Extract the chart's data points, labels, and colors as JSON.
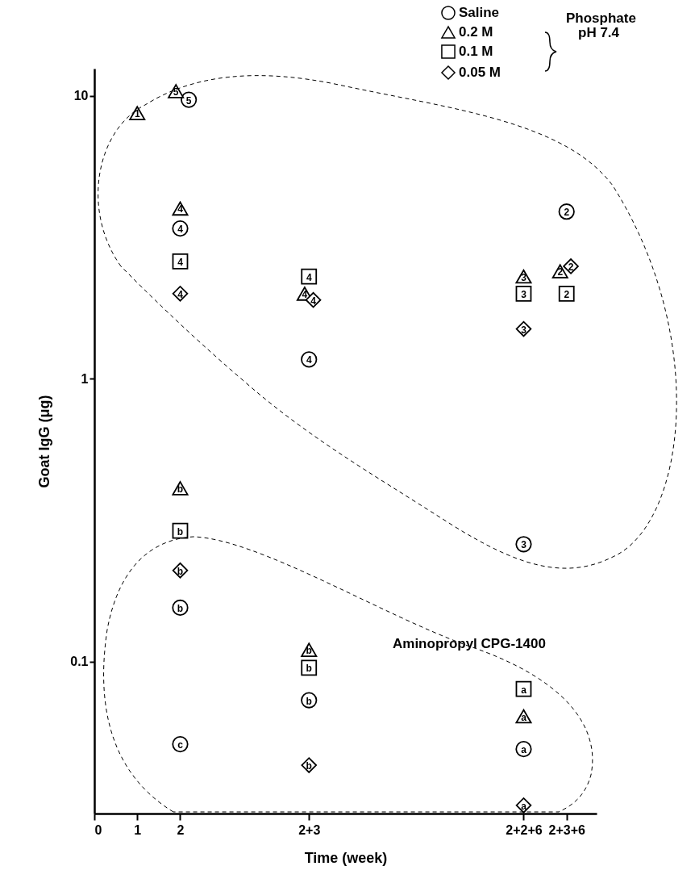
{
  "chart_data": {
    "type": "scatter",
    "xlabel": "Time (week)",
    "ylabel": "Goat IgG (μg)",
    "xlim": [
      0,
      11.7
    ],
    "xticks": [
      0,
      1,
      2,
      {
        "value": 5,
        "label": "2+3"
      },
      {
        "value": 10,
        "label": "2+2+6"
      },
      {
        "value": 11,
        "label": "2+3+6"
      }
    ],
    "ylim": [
      0.029,
      12.5
    ],
    "yticks": [
      0.1,
      1,
      10
    ],
    "log": "y",
    "grid": false,
    "legend": "top right",
    "annotations": [
      "Phosphate",
      "pH 7.4",
      "Aminopropyl CPG-1400",
      {
        "text": "5",
        "x": 2.2,
        "y": 9.7
      },
      {
        "text": "4",
        "x": 2,
        "y": 3.4
      },
      {
        "text": "4",
        "x": 5,
        "y": 1.17
      },
      {
        "text": "2",
        "x": 11,
        "y": 3.9
      },
      {
        "text": "3",
        "x": 10,
        "y": 0.26
      },
      {
        "text": "b",
        "x": 2,
        "y": 0.155
      },
      {
        "text": "c",
        "x": 2,
        "y": 0.051
      },
      {
        "text": "b",
        "x": 5,
        "y": 0.073
      },
      {
        "text": "a",
        "x": 10,
        "y": 0.049
      },
      {
        "text": "1",
        "x": 1,
        "y": 8.7
      },
      {
        "text": "5",
        "x": 1.9,
        "y": 10.4
      },
      {
        "text": "4",
        "x": 2,
        "y": 4.0
      },
      {
        "text": "4",
        "x": 4.9,
        "y": 2.0
      },
      {
        "text": "3",
        "x": 10,
        "y": 2.3
      },
      {
        "text": "2",
        "x": 10.85,
        "y": 2.4
      },
      {
        "text": "b",
        "x": 2,
        "y": 0.41
      },
      {
        "text": "b",
        "x": 5,
        "y": 0.11
      },
      {
        "text": "a",
        "x": 10,
        "y": 0.064
      },
      {
        "text": "4",
        "x": 2,
        "y": 2.6
      },
      {
        "text": "4",
        "x": 5,
        "y": 2.3
      },
      {
        "text": "3",
        "x": 10,
        "y": 2.0
      },
      {
        "text": "2",
        "x": 11,
        "y": 2.0
      },
      {
        "text": "b",
        "x": 2,
        "y": 0.29
      },
      {
        "text": "b",
        "x": 5,
        "y": 0.095
      },
      {
        "text": "a",
        "x": 10,
        "y": 0.08
      },
      {
        "text": "4",
        "x": 2,
        "y": 2.0
      },
      {
        "text": "4",
        "x": 5.1,
        "y": 1.9
      },
      {
        "text": "3",
        "x": 10,
        "y": 1.5
      },
      {
        "text": "2",
        "x": 11.1,
        "y": 2.5
      },
      {
        "text": "b",
        "x": 2,
        "y": 0.21
      },
      {
        "text": "b",
        "x": 5,
        "y": 0.043
      },
      {
        "text": "a",
        "x": 10,
        "y": 0.031
      }
    ],
    "series": [
      {
        "name": "Saline",
        "color": "#000000",
        "marker": "circle",
        "x": [
          2.2,
          2,
          5,
          11,
          10,
          2,
          2,
          5,
          10
        ],
        "values": [
          9.7,
          3.4,
          1.17,
          3.9,
          0.26,
          0.155,
          0.051,
          0.073,
          0.049
        ]
      },
      {
        "name": "0.2 M",
        "color": "#000000",
        "marker": "triangle",
        "x": [
          1,
          1.9,
          2,
          4.9,
          10,
          10.85,
          2,
          5,
          10
        ],
        "values": [
          8.7,
          10.4,
          4.0,
          2.0,
          2.3,
          2.4,
          0.41,
          0.11,
          0.064
        ]
      },
      {
        "name": "0.1 M",
        "color": "#000000",
        "marker": "square",
        "x": [
          2,
          5,
          10,
          11,
          2,
          5,
          10
        ],
        "values": [
          2.6,
          2.3,
          2.0,
          2.0,
          0.29,
          0.095,
          0.08
        ]
      },
      {
        "name": "0.05 M",
        "color": "#000000",
        "marker": "diamond",
        "x": [
          2,
          5.1,
          10,
          11.1,
          2,
          5,
          10
        ],
        "values": [
          2.0,
          1.9,
          1.5,
          2.5,
          0.21,
          0.043,
          0.031
        ]
      }
    ]
  }
}
